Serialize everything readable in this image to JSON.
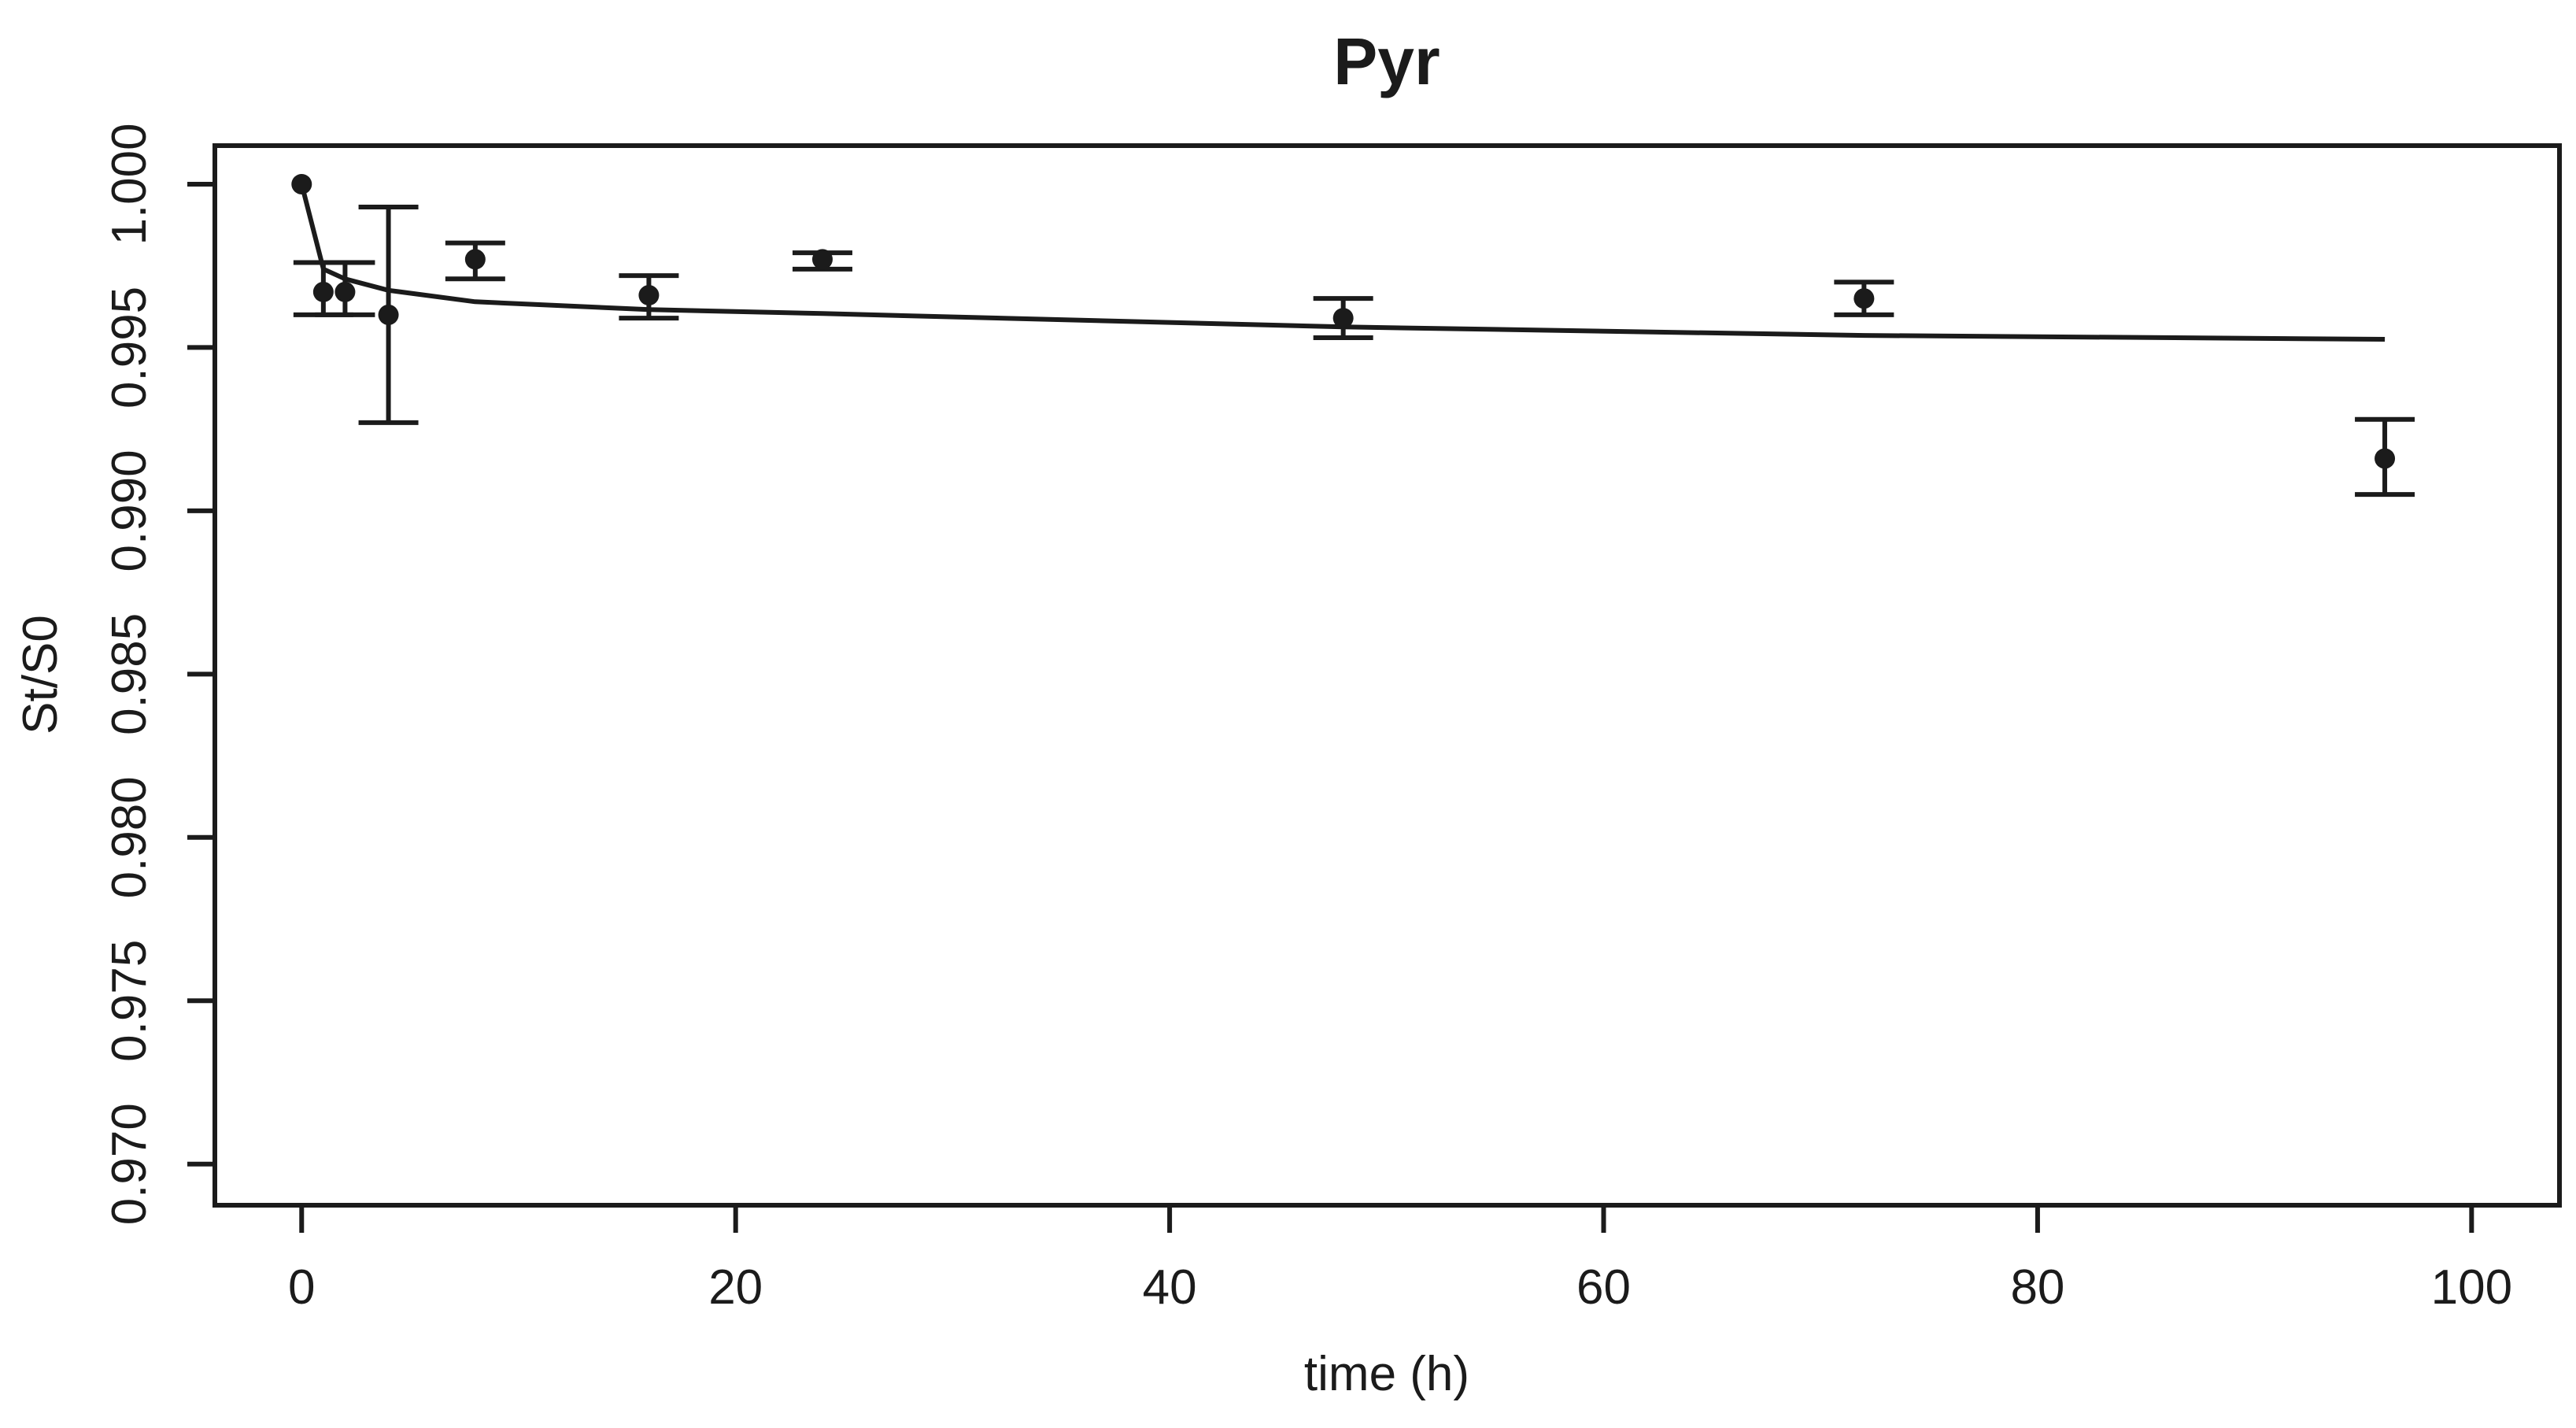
{
  "page": {
    "background": "#ffffff",
    "foreground": "#1b1b1b"
  },
  "chart_data": {
    "type": "scatter",
    "title": "Pyr",
    "xlabel": "time (h)",
    "ylabel": "St/S0",
    "grid": false,
    "legend": "none",
    "marker_color": "#1b1b1b",
    "line_color": "#1b1b1b",
    "axis_color": "#1b1b1b",
    "xlim": [
      -4.0,
      104.05
    ],
    "ylim": [
      0.96874,
      1.00118
    ],
    "x_ticks": [
      {
        "value": 0,
        "label": "0"
      },
      {
        "value": 20,
        "label": "20"
      },
      {
        "value": 40,
        "label": "40"
      },
      {
        "value": 60,
        "label": "60"
      },
      {
        "value": 80,
        "label": "80"
      },
      {
        "value": 100,
        "label": "100"
      }
    ],
    "y_ticks": [
      {
        "value": 1.0,
        "label": "1.000"
      },
      {
        "value": 0.995,
        "label": "0.995"
      },
      {
        "value": 0.99,
        "label": "0.990"
      },
      {
        "value": 0.985,
        "label": "0.985"
      },
      {
        "value": 0.98,
        "label": "0.980"
      },
      {
        "value": 0.975,
        "label": "0.975"
      },
      {
        "value": 0.97,
        "label": "0.970"
      }
    ],
    "points": [
      {
        "t": 0,
        "value": 1.0,
        "err_lo": null,
        "err_hi": null
      },
      {
        "t": 1,
        "value": 0.9967,
        "err_lo": 0.996,
        "err_hi": 0.9976
      },
      {
        "t": 2,
        "value": 0.9967,
        "err_lo": 0.996,
        "err_hi": 0.9976
      },
      {
        "t": 4,
        "value": 0.996,
        "err_lo": 0.9927,
        "err_hi": 0.9993
      },
      {
        "t": 8,
        "value": 0.9977,
        "err_lo": 0.9971,
        "err_hi": 0.9982
      },
      {
        "t": 16,
        "value": 0.9966,
        "err_lo": 0.9959,
        "err_hi": 0.9972
      },
      {
        "t": 24,
        "value": 0.9977,
        "err_lo": 0.9974,
        "err_hi": 0.9979
      },
      {
        "t": 48,
        "value": 0.9959,
        "err_lo": 0.9953,
        "err_hi": 0.9965
      },
      {
        "t": 72,
        "value": 0.9965,
        "err_lo": 0.996,
        "err_hi": 0.997
      },
      {
        "t": 96,
        "value": 0.9916,
        "err_lo": 0.9905,
        "err_hi": 0.9928
      }
    ],
    "fit_line": [
      [
        0,
        1.0
      ],
      [
        1,
        0.9974
      ],
      [
        2,
        0.9971
      ],
      [
        4,
        0.99675
      ],
      [
        8,
        0.9964
      ],
      [
        16,
        0.99616
      ],
      [
        24,
        0.99604
      ],
      [
        48,
        0.99563
      ],
      [
        72,
        0.99537
      ],
      [
        96,
        0.99525
      ]
    ]
  }
}
